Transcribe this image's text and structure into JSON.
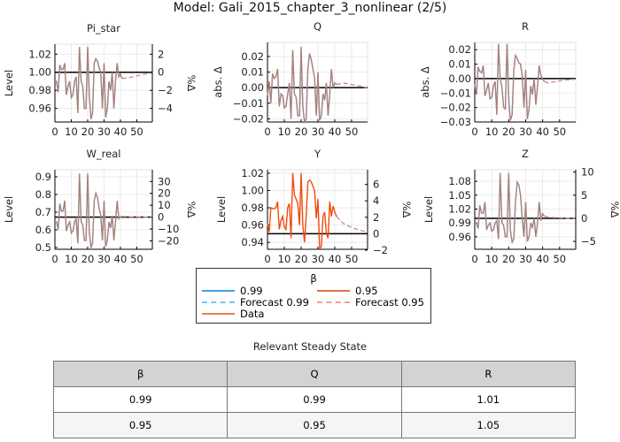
{
  "title": "Model: Gali_2015_chapter_3_nonlinear  (2/5)",
  "colors": {
    "beta_099": "#3da4e0",
    "beta_095": "#e36f47",
    "data": "#f24b0f",
    "steady_state": "#000000",
    "grid": "#e6e6e6"
  },
  "legend": {
    "title": "β",
    "items": [
      {
        "label": "0.99",
        "style": "solid",
        "color": "#3da4e0"
      },
      {
        "label": "0.95",
        "style": "solid",
        "color": "#e36f47"
      },
      {
        "label": "Forecast 0.99",
        "style": "dashed",
        "color": "#7cc3ec"
      },
      {
        "label": "Forecast 0.95",
        "style": "dashed",
        "color": "#eda08a"
      },
      {
        "label": "Data",
        "style": "solid",
        "color": "#f07a50"
      }
    ]
  },
  "chart_data": [
    {
      "type": "line",
      "title": "Pi_star",
      "ylabel": "Level",
      "xlim": [
        0,
        59.5
      ],
      "ylim": [
        0.945,
        1.031
      ],
      "xticks": [
        0,
        10,
        20,
        30,
        40,
        50
      ],
      "yticks": [
        0.96,
        0.98,
        1.0,
        1.02
      ],
      "ytick_labels": [
        "0.96",
        "0.98",
        "1.00",
        "1.02"
      ],
      "steady_state": 1.0,
      "right_axis": {
        "label": "%Δ",
        "ticks": [
          -4,
          -2,
          0,
          2
        ]
      },
      "values": [
        0.99,
        0.99,
        0.978,
        1.008,
        1.003,
        1.003,
        1.01,
        0.975,
        0.985,
        0.99,
        0.972,
        0.975,
        0.99,
        0.995,
        0.955,
        1.028,
        0.99,
        0.985,
        0.96,
        0.96,
        1.028,
        0.975,
        0.948,
        0.955,
        1.01,
        1.015,
        1.012,
        1.005,
        1.0,
        0.96,
        1.01,
        0.95,
        0.96,
        0.99,
        0.98,
        1.0,
        0.96,
        0.99,
        1.01,
        0.995,
        0.998,
        0.993
      ],
      "forecast": {
        "x": [
          41,
          45,
          50,
          55,
          59
        ],
        "y": [
          0.993,
          0.994,
          0.996,
          0.998,
          0.999
        ]
      }
    },
    {
      "type": "line",
      "title": "Q",
      "ylabel": "abs. Δ",
      "xlim": [
        0,
        59.5
      ],
      "ylim": [
        -0.022,
        0.029
      ],
      "xticks": [
        0,
        10,
        20,
        30,
        40,
        50
      ],
      "yticks": [
        -0.02,
        -0.01,
        0.0,
        0.01,
        0.02
      ],
      "ytick_labels": [
        "−0.02",
        "−0.01",
        "0.00",
        "0.01",
        "0.02"
      ],
      "steady_state": 0.0,
      "values": [
        -0.005,
        0.004,
        -0.01,
        0.009,
        0.006,
        0.007,
        0.012,
        -0.012,
        -0.004,
        -0.005,
        -0.013,
        -0.012,
        -0.004,
        0.003,
        -0.02,
        0.024,
        -0.004,
        -0.006,
        -0.018,
        -0.018,
        0.026,
        -0.012,
        -0.022,
        -0.02,
        0.012,
        0.022,
        0.018,
        0.012,
        0.006,
        -0.018,
        0.01,
        -0.021,
        -0.018,
        -0.004,
        -0.008,
        0.003,
        -0.018,
        -0.004,
        0.012,
        0.0,
        0.003,
        0.002
      ],
      "forecast": {
        "x": [
          41,
          45,
          50,
          55,
          59
        ],
        "y": [
          0.002,
          0.003,
          0.002,
          0.001,
          0.0
        ]
      }
    },
    {
      "type": "line",
      "title": "R",
      "ylabel": "abs. Δ",
      "xlim": [
        0,
        59.5
      ],
      "ylim": [
        -0.03,
        0.025
      ],
      "xticks": [
        0,
        10,
        20,
        30,
        40,
        50
      ],
      "yticks": [
        -0.03,
        -0.02,
        -0.01,
        0.0,
        0.01,
        0.02
      ],
      "ytick_labels": [
        "−0.03",
        "−0.02",
        "−0.01",
        "0.00",
        "0.01",
        "0.02"
      ],
      "steady_state": 0.0,
      "values": [
        -0.004,
        -0.011,
        0.008,
        0.005,
        0.004,
        0.009,
        -0.012,
        -0.008,
        -0.003,
        -0.014,
        -0.013,
        -0.005,
        -0.002,
        -0.025,
        0.024,
        0.0,
        -0.006,
        -0.02,
        -0.021,
        0.024,
        -0.013,
        -0.029,
        -0.025,
        0.006,
        0.016,
        0.014,
        0.011,
        0.01,
        0.002,
        -0.02,
        0.006,
        -0.028,
        -0.021,
        -0.005,
        -0.011,
        0.0,
        -0.018,
        -0.005,
        0.009,
        0.002,
        0.0,
        -0.002
      ],
      "forecast": {
        "x": [
          41,
          43,
          48,
          53,
          59
        ],
        "y": [
          -0.002,
          -0.003,
          -0.002,
          -0.001,
          -0.0005
        ]
      }
    },
    {
      "type": "line",
      "title": "W_real",
      "ylabel": "Level",
      "xlim": [
        0,
        59.5
      ],
      "ylim": [
        0.49,
        0.94
      ],
      "xticks": [
        0,
        10,
        20,
        30,
        40,
        50
      ],
      "yticks": [
        0.5,
        0.6,
        0.7,
        0.8,
        0.9
      ],
      "ytick_labels": [
        "0.5",
        "0.6",
        "0.7",
        "0.8",
        "0.9"
      ],
      "steady_state": 0.672,
      "right_axis": {
        "label": "%Δ",
        "ticks": [
          -20,
          -10,
          0,
          10,
          20,
          30
        ]
      },
      "values": [
        0.645,
        0.645,
        0.603,
        0.748,
        0.706,
        0.706,
        0.765,
        0.593,
        0.628,
        0.645,
        0.582,
        0.593,
        0.645,
        0.663,
        0.523,
        0.918,
        0.645,
        0.628,
        0.54,
        0.54,
        0.918,
        0.593,
        0.498,
        0.523,
        0.765,
        0.808,
        0.782,
        0.723,
        0.68,
        0.54,
        0.765,
        0.505,
        0.54,
        0.645,
        0.61,
        0.68,
        0.54,
        0.645,
        0.765,
        0.663,
        0.673,
        0.676
      ],
      "forecast": {
        "x": [
          41,
          45,
          50,
          55,
          59
        ],
        "y": [
          0.676,
          0.674,
          0.673,
          0.672,
          0.672
        ]
      }
    },
    {
      "type": "line",
      "title": "Y",
      "ylabel": "Level",
      "xlim": [
        0,
        59.5
      ],
      "ylim": [
        0.932,
        1.024
      ],
      "xticks": [
        0,
        10,
        20,
        30,
        40,
        50
      ],
      "yticks": [
        0.94,
        0.96,
        0.98,
        1.0,
        1.02
      ],
      "ytick_labels": [
        "0.94",
        "0.96",
        "0.98",
        "1.00",
        "1.02"
      ],
      "steady_state": 0.95,
      "right_axis": {
        "label": "%Δ",
        "ticks": [
          -2,
          0,
          2,
          4,
          6
        ]
      },
      "data_only": true,
      "values": [
        0.962,
        0.952,
        0.98,
        0.979,
        0.979,
        0.98,
        0.987,
        0.955,
        0.965,
        0.97,
        0.958,
        0.955,
        0.98,
        0.985,
        0.945,
        1.02,
        0.995,
        0.99,
        0.985,
        0.96,
        1.02,
        0.96,
        0.94,
        0.97,
        1.01,
        1.012,
        1.01,
        1.005,
        1.0,
        0.968,
        0.99,
        0.933,
        0.935,
        0.97,
        0.975,
        0.95,
        0.945,
        0.987,
        0.97,
        0.982,
        0.975,
        0.97
      ],
      "forecast": {
        "x": [
          41,
          45,
          50,
          55,
          59
        ],
        "y": [
          0.97,
          0.962,
          0.957,
          0.954,
          0.952
        ]
      }
    },
    {
      "type": "line",
      "title": "Z",
      "ylabel": "Level",
      "xlim": [
        0,
        59.5
      ],
      "ylim": [
        0.933,
        1.105
      ],
      "xticks": [
        0,
        10,
        20,
        30,
        40,
        50
      ],
      "yticks": [
        0.96,
        0.99,
        1.02,
        1.05,
        1.08
      ],
      "ytick_labels": [
        "0.96",
        "0.99",
        "1.02",
        "1.05",
        "1.08"
      ],
      "steady_state": 1.0,
      "right_axis": {
        "label": "%Δ",
        "ticks": [
          -5,
          0,
          5,
          10
        ]
      },
      "values": [
        0.99,
        0.99,
        0.978,
        1.028,
        1.011,
        1.011,
        1.035,
        0.975,
        0.985,
        0.99,
        0.972,
        0.975,
        0.99,
        0.995,
        0.955,
        1.098,
        0.99,
        0.985,
        0.96,
        0.96,
        1.098,
        0.975,
        0.948,
        0.955,
        1.035,
        1.078,
        1.072,
        1.05,
        1.0,
        0.96,
        1.035,
        0.95,
        0.96,
        0.99,
        0.98,
        1.0,
        0.96,
        0.99,
        1.035,
        0.995,
        1.01,
        1.004
      ],
      "forecast": {
        "x": [
          41,
          45,
          50,
          55,
          59
        ],
        "y": [
          1.004,
          1.002,
          1.001,
          1.0,
          1.0
        ]
      }
    }
  ],
  "table": {
    "title": "Relevant Steady State",
    "headers": [
      "β",
      "Q",
      "R"
    ],
    "rows": [
      [
        "0.99",
        "0.99",
        "1.01"
      ],
      [
        "0.95",
        "0.95",
        "1.05"
      ]
    ]
  }
}
